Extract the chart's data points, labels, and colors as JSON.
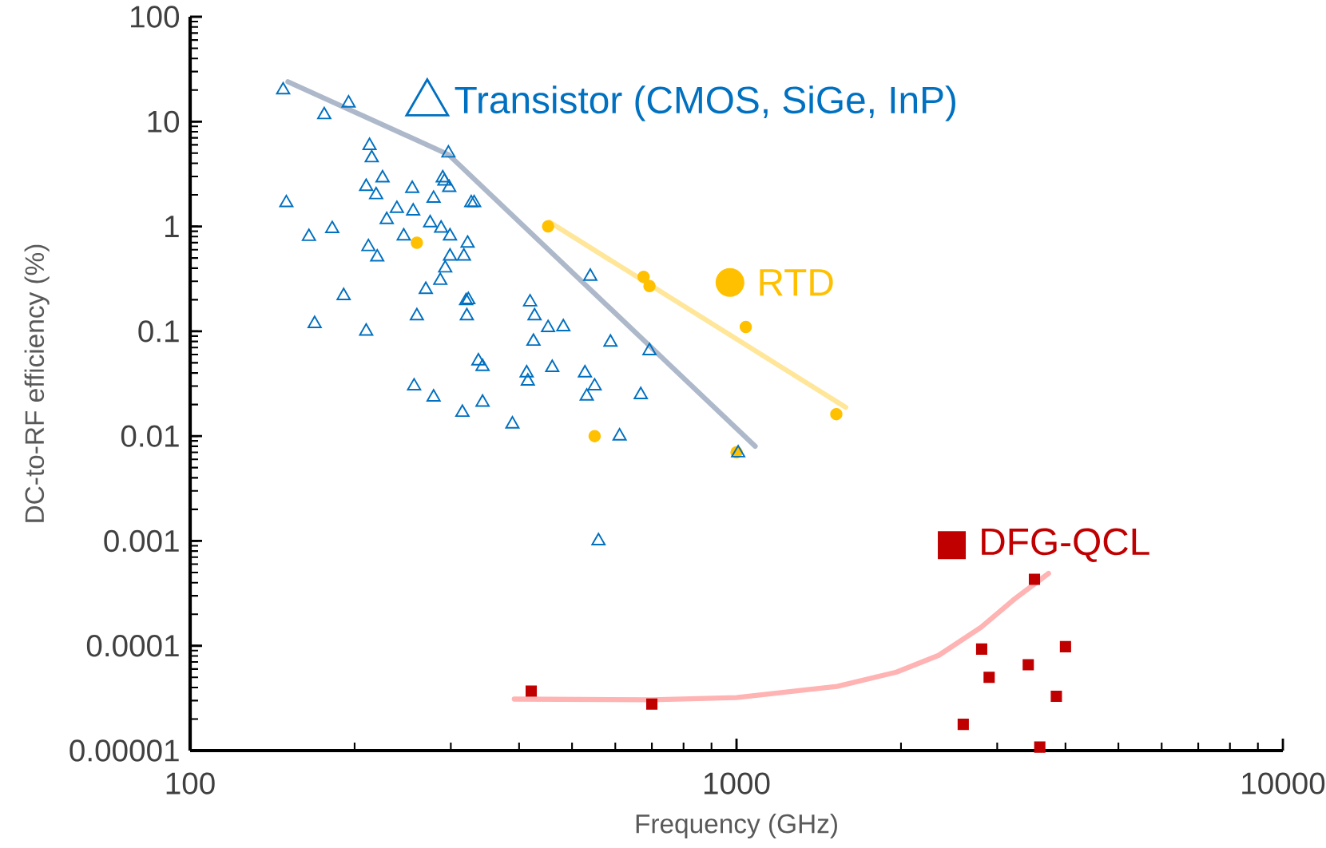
{
  "chart_data": {
    "type": "scatter",
    "xlabel": "Frequency (GHz)",
    "ylabel": "DC-to-RF efficiency (%)",
    "log": "xy",
    "legend": "top",
    "xlim": [
      100,
      10000
    ],
    "ylim": [
      1e-05,
      100
    ],
    "xticks": [
      {
        "value": 100,
        "label": "100"
      },
      {
        "value": 1000,
        "label": "1000"
      },
      {
        "value": 10000,
        "label": "10000"
      }
    ],
    "yticks": [
      {
        "value": 1e-05,
        "label": "0.00001"
      },
      {
        "value": 0.0001,
        "label": "0.0001"
      },
      {
        "value": 0.001,
        "label": "0.001"
      },
      {
        "value": 0.01,
        "label": "0.01"
      },
      {
        "value": 0.1,
        "label": "0.1"
      },
      {
        "value": 1,
        "label": "1"
      },
      {
        "value": 10,
        "label": "10"
      },
      {
        "value": 100,
        "label": "100"
      }
    ],
    "series": [
      {
        "type": "line",
        "marker": "none",
        "color": "#adb9ca",
        "x": [
          151,
          297,
          1082
        ],
        "values": [
          24,
          4.85,
          0.008
        ]
      },
      {
        "type": "line",
        "marker": "none",
        "color": "#ffe699",
        "x": [
          455,
          1585
        ],
        "values": [
          1.1,
          0.0188
        ]
      },
      {
        "type": "line",
        "marker": "none",
        "color": "#ffb3b3",
        "x": [
          392,
          700,
          1000,
          1528,
          1962,
          2344,
          2802,
          3230,
          3725
        ],
        "values": [
          3.1e-05,
          3.05e-05,
          3.2e-05,
          4.1e-05,
          5.6e-05,
          8.1e-05,
          0.00015,
          0.00028,
          0.00049
        ]
      },
      {
        "name": "Transistor (CMOS, SiGe, InP)",
        "marker": "triangle",
        "color": "#0070c0",
        "x": [
          148,
          150,
          165,
          169,
          176,
          182,
          191,
          195,
          210,
          210,
          212,
          213,
          215,
          219,
          220,
          225,
          229,
          239,
          246,
          255,
          256,
          257,
          260,
          270,
          275,
          279,
          279,
          287,
          288,
          290,
          292,
          293,
          297,
          298,
          299,
          299,
          315,
          317,
          320,
          321,
          322,
          323,
          327,
          331,
          337,
          343,
          343,
          389,
          413,
          415,
          419,
          425,
          427,
          452,
          460,
          482,
          528,
          532,
          540,
          550,
          559,
          588,
          611,
          668,
          693,
          1007
        ],
        "values": [
          20,
          1.68,
          0.8,
          0.118,
          11.6,
          0.95,
          0.218,
          15,
          2.4,
          0.1,
          0.64,
          5.9,
          4.5,
          2.0,
          0.51,
          2.9,
          1.16,
          1.48,
          0.81,
          2.3,
          1.4,
          0.03,
          0.14,
          0.25,
          1.08,
          0.0235,
          1.85,
          0.305,
          0.96,
          2.9,
          2.7,
          0.4,
          5.0,
          2.35,
          0.52,
          0.81,
          0.0168,
          0.52,
          0.195,
          0.14,
          0.69,
          0.2,
          1.68,
          1.68,
          0.052,
          0.046,
          0.021,
          0.013,
          0.04,
          0.0334,
          0.19,
          0.08,
          0.14,
          0.108,
          0.045,
          0.11,
          0.04,
          0.024,
          0.334,
          0.03,
          0.001,
          0.0785,
          0.01,
          0.0248,
          0.065,
          0.0069
        ]
      },
      {
        "name": "RTD",
        "marker": "circle",
        "color": "#ffc000",
        "x": [
          260,
          452,
          676,
          693,
          1040,
          550,
          1523,
          1000
        ],
        "values": [
          0.7,
          1.0,
          0.33,
          0.27,
          0.11,
          0.01,
          0.0162,
          0.007
        ]
      },
      {
        "name": "DFG-QCL",
        "marker": "square",
        "color": "#c00000",
        "x": [
          421,
          700,
          2600,
          2810,
          2900,
          3420,
          3510,
          3590,
          3850,
          4000
        ],
        "values": [
          3.7e-05,
          2.78e-05,
          1.78e-05,
          9.3e-05,
          5e-05,
          6.6e-05,
          0.00043,
          1.08e-05,
          3.3e-05,
          9.8e-05
        ]
      }
    ]
  }
}
